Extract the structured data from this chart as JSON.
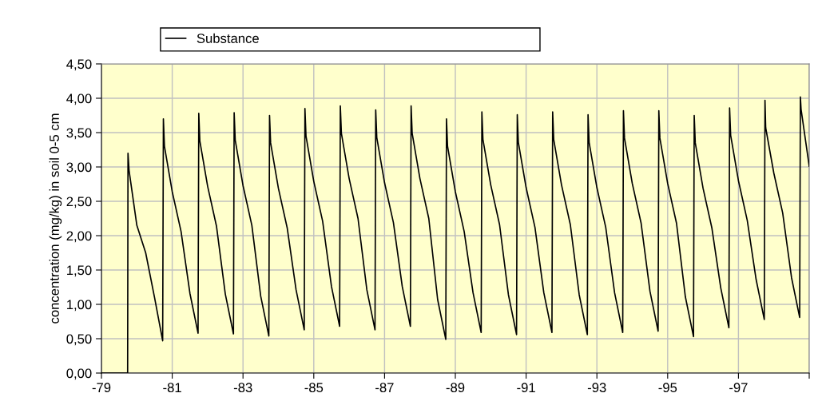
{
  "chart_data": {
    "type": "line",
    "ylabel": "concentration (mg/kg) in soil 0-5 cm",
    "x": [
      -79,
      -79.74,
      -79.745,
      -79.75,
      -79.78,
      -80.0,
      -80.25,
      -80.5,
      -80.73,
      -80.75,
      -80.78,
      -81.0,
      -81.25,
      -81.5,
      -81.73,
      -81.75,
      -81.78,
      -82.0,
      -82.25,
      -82.5,
      -82.73,
      -82.75,
      -82.78,
      -83.0,
      -83.25,
      -83.5,
      -83.73,
      -83.75,
      -83.78,
      -84.0,
      -84.25,
      -84.5,
      -84.73,
      -84.75,
      -84.78,
      -85.0,
      -85.25,
      -85.5,
      -85.73,
      -85.75,
      -85.78,
      -86.0,
      -86.25,
      -86.5,
      -86.73,
      -86.75,
      -86.78,
      -87.0,
      -87.25,
      -87.5,
      -87.73,
      -87.75,
      -87.78,
      -88.0,
      -88.25,
      -88.5,
      -88.73,
      -88.75,
      -88.78,
      -89.0,
      -89.25,
      -89.5,
      -89.73,
      -89.75,
      -89.78,
      -90.0,
      -90.25,
      -90.5,
      -90.73,
      -90.75,
      -90.78,
      -91.0,
      -91.25,
      -91.5,
      -91.73,
      -91.75,
      -91.78,
      -92.0,
      -92.25,
      -92.5,
      -92.73,
      -92.75,
      -92.78,
      -93.0,
      -93.25,
      -93.5,
      -93.73,
      -93.75,
      -93.78,
      -94.0,
      -94.25,
      -94.5,
      -94.73,
      -94.75,
      -94.78,
      -95.0,
      -95.25,
      -95.5,
      -95.73,
      -95.75,
      -95.78,
      -96.0,
      -96.25,
      -96.5,
      -96.73,
      -96.75,
      -96.78,
      -97.0,
      -97.25,
      -97.5,
      -97.73,
      -97.75,
      -97.77,
      -98.0,
      -98.25,
      -98.5,
      -98.73,
      -98.75,
      -98.77,
      -99.0
    ],
    "series": [
      {
        "name": "Substance",
        "color": "#000000",
        "values": [
          0,
          0,
          1.6,
          3.2,
          2.95,
          2.15,
          1.75,
          1.1,
          0.47,
          3.7,
          3.3,
          2.64,
          2.06,
          1.16,
          0.58,
          3.78,
          3.38,
          2.72,
          2.14,
          1.15,
          0.57,
          3.79,
          3.39,
          2.73,
          2.15,
          1.12,
          0.54,
          3.75,
          3.35,
          2.69,
          2.11,
          1.21,
          0.63,
          3.85,
          3.45,
          2.79,
          2.21,
          1.26,
          0.68,
          3.89,
          3.49,
          2.83,
          2.25,
          1.21,
          0.63,
          3.83,
          3.43,
          2.77,
          2.19,
          1.26,
          0.68,
          3.89,
          3.49,
          2.83,
          2.25,
          1.07,
          0.49,
          3.7,
          3.3,
          2.64,
          2.06,
          1.17,
          0.59,
          3.8,
          3.4,
          2.74,
          2.16,
          1.14,
          0.56,
          3.76,
          3.36,
          2.7,
          2.12,
          1.17,
          0.59,
          3.8,
          3.4,
          2.74,
          2.16,
          1.14,
          0.56,
          3.76,
          3.36,
          2.7,
          2.12,
          1.17,
          0.59,
          3.82,
          3.42,
          2.76,
          2.18,
          1.19,
          0.61,
          3.82,
          3.42,
          2.76,
          2.18,
          1.11,
          0.53,
          3.75,
          3.35,
          2.69,
          2.11,
          1.24,
          0.66,
          3.86,
          3.46,
          2.8,
          2.22,
          1.36,
          0.78,
          3.97,
          3.57,
          2.91,
          2.33,
          1.39,
          0.81,
          4.02,
          3.84,
          3.01
        ]
      }
    ],
    "xlim": [
      -79,
      -99
    ],
    "xticks": [
      {
        "value": -79,
        "label": "-79"
      },
      {
        "value": -81,
        "label": "-81"
      },
      {
        "value": -83,
        "label": "-83"
      },
      {
        "value": -85,
        "label": "-85"
      },
      {
        "value": -87,
        "label": "-87"
      },
      {
        "value": -89,
        "label": "-89"
      },
      {
        "value": -91,
        "label": "-91"
      },
      {
        "value": -93,
        "label": "-93"
      },
      {
        "value": -95,
        "label": "-95"
      },
      {
        "value": -97,
        "label": "-97"
      },
      {
        "value": -99,
        "label": null
      }
    ],
    "ylim": [
      0,
      4.5
    ],
    "yticks": [
      {
        "value": 0,
        "label": "0,00"
      },
      {
        "value": 0.5,
        "label": "0,50"
      },
      {
        "value": 1,
        "label": "1,00"
      },
      {
        "value": 1.5,
        "label": "1,50"
      },
      {
        "value": 2,
        "label": "2,00"
      },
      {
        "value": 2.5,
        "label": "2,50"
      },
      {
        "value": 3,
        "label": "3,00"
      },
      {
        "value": 3.5,
        "label": "3,50"
      },
      {
        "value": 4,
        "label": "4,00"
      },
      {
        "value": 4.5,
        "label": "4,50"
      }
    ],
    "grid": true,
    "legend": "top",
    "marker": "none",
    "line_style": "solid"
  }
}
